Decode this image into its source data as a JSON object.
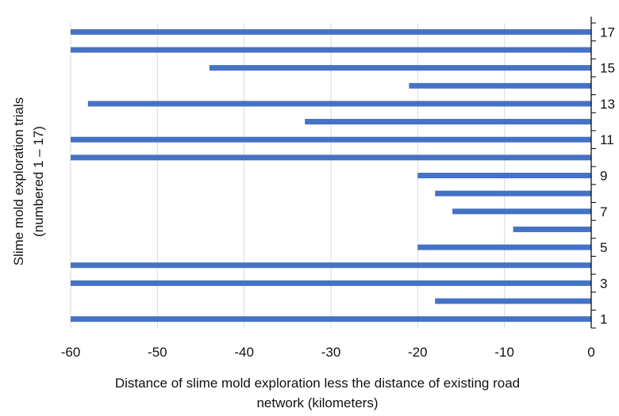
{
  "chart_data": {
    "type": "bar",
    "orientation": "horizontal",
    "categories": [
      "1",
      "2",
      "3",
      "4",
      "5",
      "6",
      "7",
      "8",
      "9",
      "10",
      "11",
      "12",
      "13",
      "14",
      "15",
      "16",
      "17"
    ],
    "values": [
      -60,
      -18,
      -60,
      -60,
      -20,
      -9,
      -16,
      -18,
      -20,
      -60,
      -60,
      -33,
      -58,
      -21,
      -44,
      -60,
      -60
    ],
    "xlim": [
      -60,
      0
    ],
    "x_ticks": [
      -60,
      -50,
      -40,
      -30,
      -20,
      -10,
      0
    ],
    "x_tick_labels": [
      "-60",
      "-50",
      "-40",
      "-30",
      "-20",
      "-10",
      "0"
    ],
    "y_tick_labels_shown": [
      "1",
      "3",
      "5",
      "7",
      "9",
      "11",
      "13",
      "15",
      "17"
    ],
    "ylabel_lines": [
      "Slime mold exploration trials",
      "(numbered 1 – 17)"
    ],
    "xlabel_lines": [
      "Distance of slime mold exploration less the distance of existing road",
      "network (kilometers)"
    ],
    "y_axis_position": "right",
    "grid": "vertical",
    "bar_color": "#4472c4",
    "grid_color": "#d9d9d9",
    "axis_color": "#000000"
  }
}
